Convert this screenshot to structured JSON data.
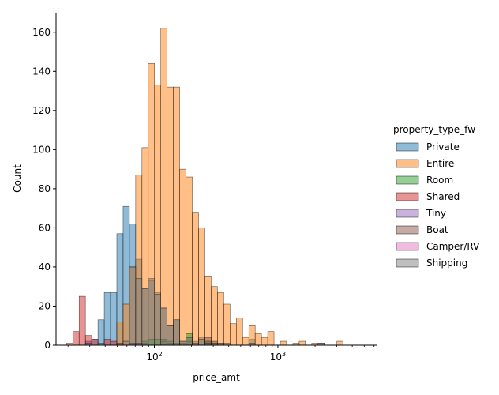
{
  "chart_data": {
    "type": "histogram",
    "xlabel": "price_amt",
    "ylabel": "Count",
    "x_scale": "log",
    "xlim": [
      16,
      6300
    ],
    "ylim": [
      0,
      170
    ],
    "y_ticks": [
      0,
      20,
      40,
      60,
      80,
      100,
      120,
      140,
      160
    ],
    "x_ticks": [
      {
        "value": 100,
        "base": "10",
        "exp": "2"
      },
      {
        "value": 1000,
        "base": "10",
        "exp": "3"
      }
    ],
    "bin_log_start": 1.289,
    "bin_log_width": 0.0509,
    "legend": {
      "title": "property_type_fw",
      "placement": "right"
    },
    "series": [
      {
        "name": "Private",
        "color": "#1f77b4",
        "counts": {
          "3": 2,
          "4": 3,
          "5": 13,
          "6": 27,
          "7": 27,
          "8": 57,
          "9": 71,
          "10": 62,
          "11": 44,
          "12": 29,
          "13": 33,
          "14": 27,
          "15": 19,
          "16": 10,
          "17": 13,
          "18": 2,
          "19": 4,
          "20": 2,
          "21": 4,
          "22": 2,
          "23": 1,
          "24": 1,
          "29": 3
        }
      },
      {
        "name": "Entire",
        "color": "#ff7f0e",
        "counts": {
          "0": 1,
          "8": 12,
          "9": 21,
          "10": 40,
          "11": 87,
          "12": 101,
          "13": 144,
          "14": 133,
          "15": 162,
          "16": 132,
          "17": 132,
          "18": 90,
          "19": 86,
          "20": 68,
          "21": 60,
          "22": 35,
          "23": 30,
          "24": 27,
          "25": 21,
          "26": 11,
          "27": 14,
          "28": 4,
          "29": 10,
          "30": 6,
          "31": 4,
          "32": 7,
          "34": 2,
          "36": 1,
          "37": 2,
          "39": 1,
          "40": 1,
          "43": 2
        }
      },
      {
        "name": "Room",
        "color": "#2ca02c",
        "counts": {
          "10": 1,
          "11": 1,
          "12": 2,
          "13": 3,
          "14": 3,
          "15": 3,
          "16": 2,
          "17": 1,
          "18": 1,
          "19": 6,
          "22": 2
        }
      },
      {
        "name": "Shared",
        "color": "#d62728",
        "counts": {
          "1": 7,
          "2": 25,
          "3": 5,
          "4": 3,
          "6": 3,
          "7": 2,
          "8": 1,
          "10": 1
        }
      },
      {
        "name": "Tiny",
        "color": "#9467bd",
        "counts": {
          "12": 1,
          "16": 1
        }
      },
      {
        "name": "Boat",
        "color": "#8c564b",
        "counts": {
          "11": 1,
          "15": 2,
          "19": 2,
          "22": 4,
          "23": 2
        }
      },
      {
        "name": "Camper/RV",
        "color": "#e377c2",
        "counts": {
          "11": 1
        }
      },
      {
        "name": "Shipping",
        "color": "#7f7f7f",
        "counts": {
          "3": 1,
          "5": 1,
          "9": 2,
          "10": 40,
          "11": 34,
          "12": 29,
          "13": 34,
          "14": 26,
          "15": 19,
          "16": 10,
          "17": 13,
          "18": 2,
          "19": 4,
          "20": 1,
          "21": 3,
          "22": 1,
          "23": 1,
          "24": 1,
          "25": 1,
          "29": 1,
          "40": 1
        }
      }
    ]
  }
}
